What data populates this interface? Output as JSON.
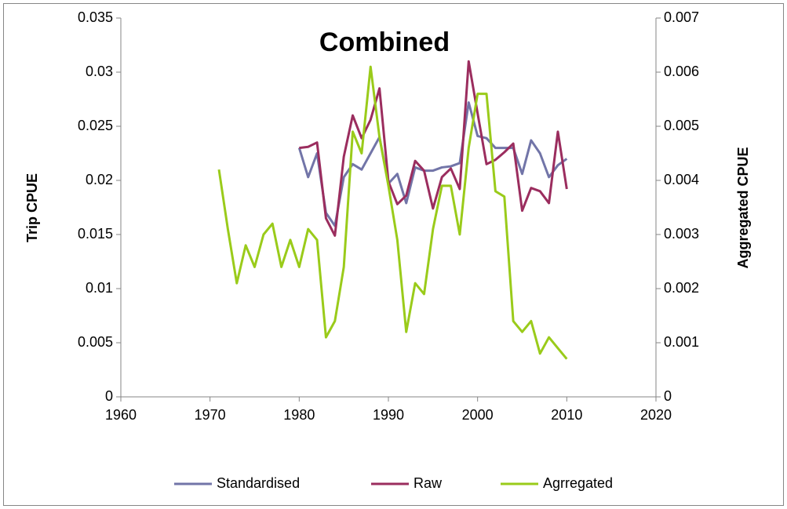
{
  "chart_data": {
    "type": "line",
    "title": "Combined",
    "y_label": "Trip CPUE",
    "y2_label": "Aggregated CPUE",
    "xlim": [
      1960,
      2020
    ],
    "xticks": [
      1960,
      1970,
      1980,
      1990,
      2000,
      2010,
      2020
    ],
    "ylim": [
      0,
      0.035
    ],
    "yticks": [
      0,
      0.005,
      0.01,
      0.015,
      0.02,
      0.025,
      0.03,
      0.035
    ],
    "y2lim": [
      0,
      0.007
    ],
    "y2ticks": [
      0,
      0.001,
      0.002,
      0.003,
      0.004,
      0.005,
      0.006,
      0.007
    ],
    "grid": false,
    "legend": "bottom",
    "series": [
      {
        "name": "Standardised",
        "color": "#7275a8",
        "x": [
          1980,
          1981,
          1982,
          1983,
          1984,
          1985,
          1986,
          1987,
          1988,
          1989,
          1990,
          1991,
          1992,
          1993,
          1994,
          1995,
          1996,
          1997,
          1998,
          1999,
          2000,
          2001,
          2002,
          2003,
          2004,
          2005,
          2006,
          2007,
          2008,
          2009,
          2010
        ],
        "values": [
          0.023,
          0.0203,
          0.0225,
          0.017,
          0.0158,
          0.0203,
          0.0215,
          0.021,
          0.0225,
          0.024,
          0.0197,
          0.0206,
          0.0179,
          0.0212,
          0.0209,
          0.0209,
          0.0212,
          0.0213,
          0.0216,
          0.0272,
          0.0241,
          0.0239,
          0.023,
          0.023,
          0.023,
          0.0206,
          0.0237,
          0.0225,
          0.0203,
          0.0214,
          0.022
        ]
      },
      {
        "name": "Raw",
        "color": "#9b2d5e",
        "x": [
          1980,
          1981,
          1982,
          1983,
          1984,
          1985,
          1986,
          1987,
          1988,
          1989,
          1990,
          1991,
          1992,
          1993,
          1994,
          1995,
          1996,
          1997,
          1998,
          1999,
          2000,
          2001,
          2002,
          2003,
          2004,
          2005,
          2006,
          2007,
          2008,
          2009,
          2010
        ],
        "values": [
          0.023,
          0.0231,
          0.0235,
          0.0165,
          0.0149,
          0.0222,
          0.026,
          0.0239,
          0.0256,
          0.0285,
          0.0199,
          0.0178,
          0.0186,
          0.0218,
          0.0209,
          0.0174,
          0.0203,
          0.0211,
          0.0192,
          0.031,
          0.0262,
          0.0215,
          0.0219,
          0.0226,
          0.0234,
          0.0172,
          0.0193,
          0.019,
          0.0179,
          0.0245,
          0.0192
        ]
      },
      {
        "name": "Agrregated",
        "color": "#9acb1a",
        "axis": "y2",
        "x": [
          1971,
          1972,
          1973,
          1974,
          1975,
          1976,
          1977,
          1978,
          1979,
          1980,
          1981,
          1982,
          1983,
          1984,
          1985,
          1986,
          1987,
          1988,
          1989,
          1990,
          1991,
          1992,
          1993,
          1994,
          1995,
          1996,
          1997,
          1998,
          1999,
          2000,
          2001,
          2002,
          2003,
          2004,
          2005,
          2006,
          2007,
          2008,
          2009,
          2010
        ],
        "values": [
          0.0042,
          0.0031,
          0.0021,
          0.0028,
          0.0024,
          0.003,
          0.0032,
          0.0024,
          0.0029,
          0.0024,
          0.0031,
          0.0029,
          0.0011,
          0.0014,
          0.0024,
          0.0049,
          0.0045,
          0.0061,
          0.0048,
          0.0039,
          0.0029,
          0.0012,
          0.0021,
          0.0019,
          0.0031,
          0.0039,
          0.0039,
          0.003,
          0.0046,
          0.0056,
          0.0056,
          0.0038,
          0.0037,
          0.0014,
          0.0012,
          0.0014,
          0.0008,
          0.0011,
          0.0009,
          0.0007
        ]
      }
    ]
  }
}
